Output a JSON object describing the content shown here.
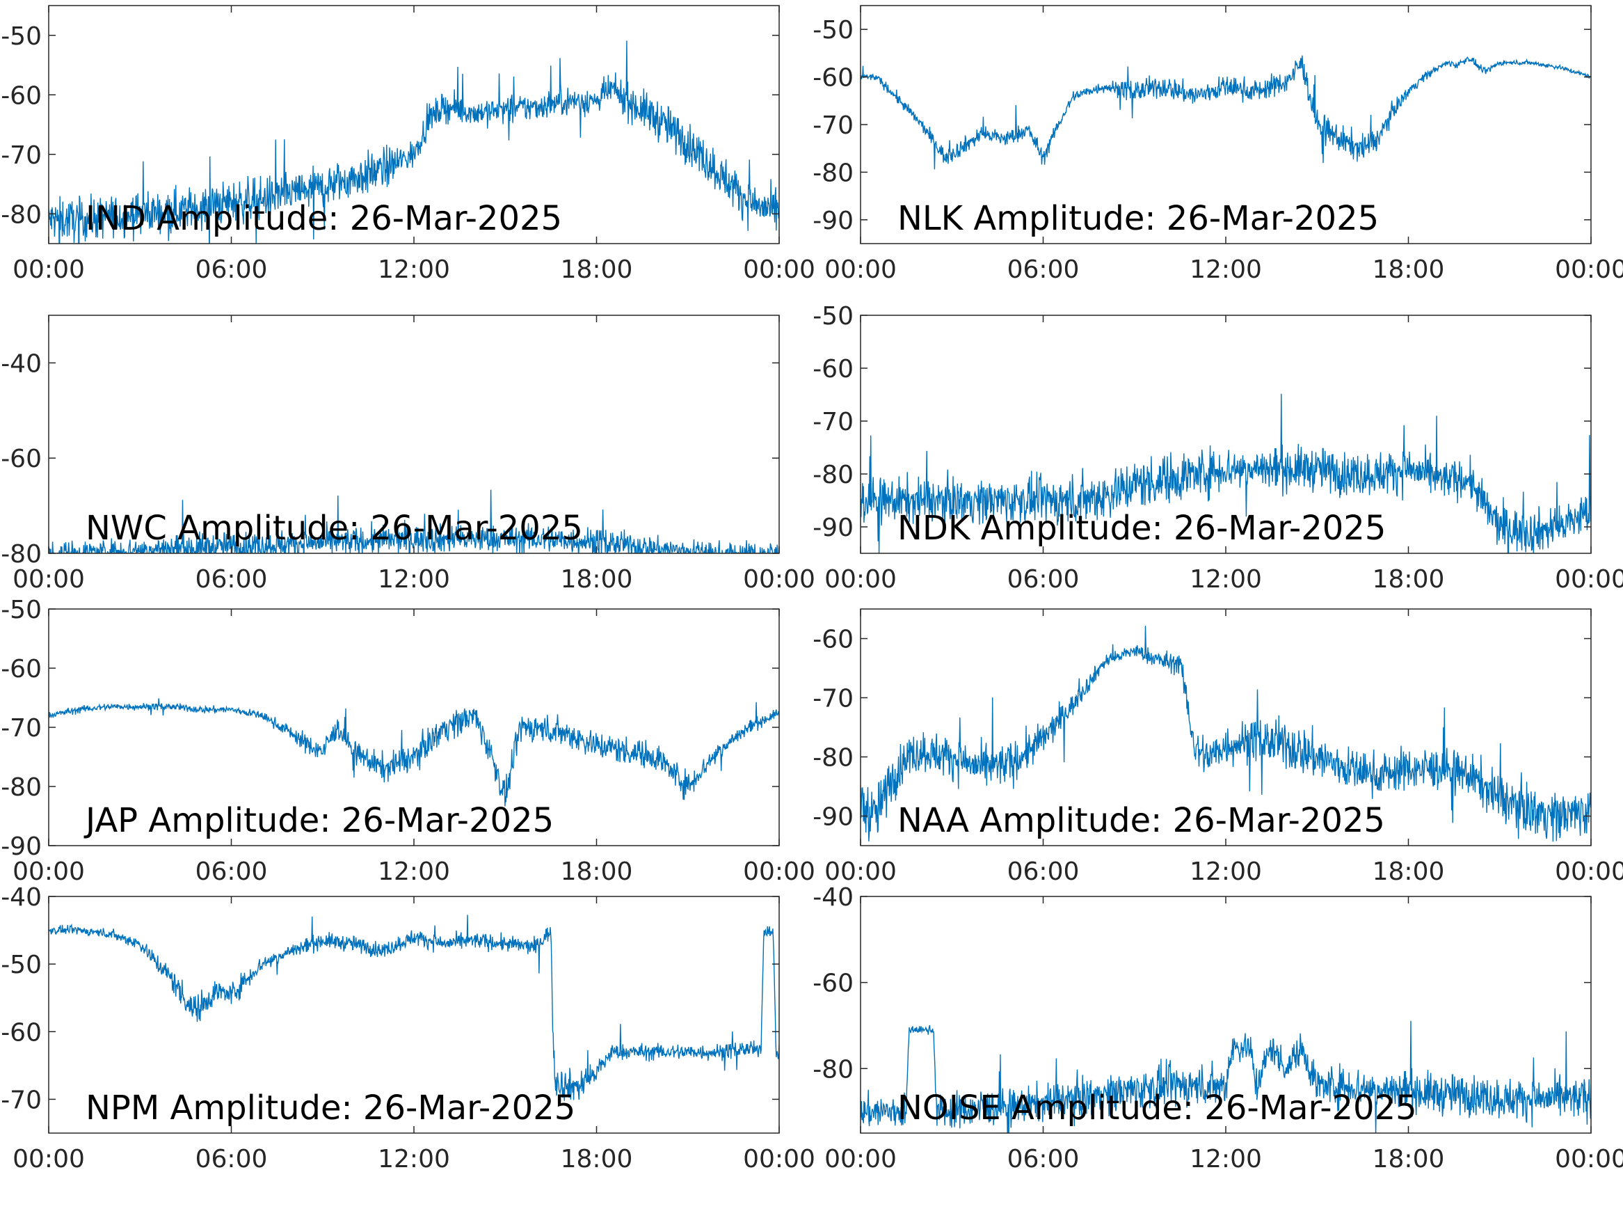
{
  "figure": {
    "line_color": "#0072bd",
    "axis_color": "#262626",
    "background": "#ffffff"
  },
  "chart_data": [
    {
      "type": "line",
      "title": "IND Amplitude: 26-Mar-2025",
      "xlabel": "",
      "ylabel": "",
      "xticks": [
        "00:00",
        "06:00",
        "12:00",
        "18:00",
        "00:00"
      ],
      "yticks": [
        -50,
        -60,
        -70,
        -80
      ],
      "ytick_labels": [
        "-50",
        "-60",
        "-70",
        "-80"
      ],
      "ylim": [
        -85,
        -45
      ],
      "grid": false,
      "series": [
        {
          "hours": [
            0,
            1,
            2,
            3,
            4,
            5,
            6,
            7,
            8,
            9,
            10,
            11,
            12,
            12.5,
            13,
            14,
            15,
            16,
            17,
            18,
            18.5,
            19,
            20,
            21,
            22,
            23,
            24
          ],
          "values": [
            -81,
            -81,
            -80.5,
            -80,
            -79.5,
            -79,
            -78,
            -77.5,
            -76.5,
            -75.5,
            -74,
            -72.5,
            -70,
            -64,
            -62,
            -63,
            -62.5,
            -62,
            -61,
            -61,
            -59,
            -61,
            -64,
            -68,
            -73,
            -78,
            -80
          ],
          "noise": [
            3,
            3,
            3,
            3,
            3,
            3,
            3,
            3,
            3,
            3,
            3,
            3,
            2,
            2,
            2,
            2,
            2,
            2,
            2,
            2,
            2,
            2.5,
            3,
            3,
            3,
            3,
            3
          ]
        }
      ]
    },
    {
      "type": "line",
      "title": "NLK Amplitude: 26-Mar-2025",
      "xlabel": "",
      "ylabel": "",
      "xticks": [
        "00:00",
        "06:00",
        "12:00",
        "18:00",
        "00:00"
      ],
      "yticks": [
        -50,
        -60,
        -70,
        -80,
        -90
      ],
      "ytick_labels": [
        "-50",
        "-60",
        "-70",
        "-80",
        "-90"
      ],
      "ylim": [
        -95,
        -45
      ],
      "grid": false,
      "series": [
        {
          "hours": [
            0,
            0.5,
            1,
            2,
            2.8,
            3.5,
            4,
            4.8,
            5.5,
            6,
            6.5,
            7,
            8,
            9,
            10,
            11,
            12,
            13,
            14,
            14.5,
            15,
            16,
            16.5,
            17,
            17.5,
            18,
            18.5,
            19,
            19.3,
            19.6,
            20,
            20.5,
            21,
            22,
            23,
            24
          ],
          "values": [
            -60,
            -60,
            -63,
            -70,
            -77,
            -74,
            -72,
            -73,
            -71,
            -77,
            -70,
            -64,
            -62,
            -63,
            -62,
            -64,
            -62,
            -63,
            -61,
            -57,
            -70,
            -74,
            -75,
            -73,
            -67,
            -63,
            -60,
            -58,
            -57,
            -57.5,
            -56,
            -59,
            -57,
            -57,
            -58,
            -60
          ],
          "noise": [
            0.6,
            0.6,
            1,
            1,
            1.5,
            1.5,
            1.5,
            1.5,
            1.5,
            1.5,
            1,
            1,
            1,
            2,
            2,
            2,
            2,
            2,
            2,
            2,
            2.5,
            2.5,
            2.5,
            2,
            1.5,
            1,
            0.8,
            0.6,
            0.6,
            0.6,
            0.6,
            0.6,
            0.4,
            0.4,
            0.4,
            0.4
          ]
        }
      ]
    },
    {
      "type": "line",
      "title": "NWC Amplitude: 26-Mar-2025",
      "xlabel": "",
      "ylabel": "",
      "xticks": [
        "00:00",
        "06:00",
        "12:00",
        "18:00",
        "00:00"
      ],
      "yticks": [
        -40,
        -60,
        -80
      ],
      "ytick_labels": [
        "-40",
        "-60",
        "-80"
      ],
      "ylim": [
        -80,
        -30
      ],
      "grid": false,
      "series": [
        {
          "hours": [
            0,
            2,
            4,
            6,
            8,
            10,
            12,
            14,
            16,
            18,
            20,
            22,
            24
          ],
          "values": [
            -80,
            -79.5,
            -79,
            -78.5,
            -78,
            -77.5,
            -77,
            -77,
            -77,
            -77.5,
            -79,
            -80,
            -80
          ],
          "noise": [
            2,
            2,
            2.5,
            2.5,
            2.5,
            2.5,
            2.5,
            2.5,
            2.5,
            2.5,
            2,
            2,
            2
          ]
        }
      ]
    },
    {
      "type": "line",
      "title": "NDK Amplitude: 26-Mar-2025",
      "xlabel": "",
      "ylabel": "",
      "xticks": [
        "00:00",
        "06:00",
        "12:00",
        "18:00",
        "00:00"
      ],
      "yticks": [
        -50,
        -60,
        -70,
        -80,
        -90
      ],
      "ytick_labels": [
        "-50",
        "-60",
        "-70",
        "-80",
        "-90"
      ],
      "ylim": [
        -95,
        -50
      ],
      "grid": false,
      "series": [
        {
          "hours": [
            0,
            2,
            4,
            6,
            7,
            8,
            9,
            10,
            11,
            12,
            13,
            14,
            15,
            16,
            17,
            18,
            19,
            20,
            20.5,
            21,
            22,
            23,
            24
          ],
          "values": [
            -85,
            -85,
            -85,
            -85,
            -85,
            -84,
            -82,
            -81,
            -80,
            -79,
            -79,
            -79,
            -79,
            -80,
            -80,
            -79,
            -81,
            -81,
            -86,
            -90,
            -91,
            -90,
            -87
          ],
          "noise": [
            3.5,
            3.5,
            3.5,
            3.5,
            4,
            4,
            4,
            4,
            4,
            3.5,
            3.5,
            3.5,
            3.5,
            3.5,
            3.5,
            3.5,
            3,
            3,
            3.5,
            3.5,
            3.5,
            3.5,
            3.5
          ]
        }
      ]
    },
    {
      "type": "line",
      "title": "JAP Amplitude: 26-Mar-2025",
      "xlabel": "",
      "ylabel": "",
      "xticks": [
        "00:00",
        "06:00",
        "12:00",
        "18:00",
        "00:00"
      ],
      "yticks": [
        -50,
        -60,
        -70,
        -80,
        -90
      ],
      "ytick_labels": [
        "-50",
        "-60",
        "-70",
        "-80",
        "-90"
      ],
      "ylim": [
        -90,
        -50
      ],
      "grid": false,
      "series": [
        {
          "hours": [
            0,
            1,
            2,
            3,
            4,
            5,
            6,
            7,
            8,
            8.5,
            9,
            9.5,
            10,
            11,
            12,
            13,
            14,
            14.5,
            15,
            15.5,
            16,
            17,
            18,
            19,
            20,
            21,
            21.5,
            22,
            23,
            24
          ],
          "values": [
            -68,
            -67,
            -66.5,
            -66.5,
            -66.5,
            -67,
            -67,
            -68,
            -71,
            -73,
            -74,
            -70,
            -74,
            -77,
            -75,
            -70,
            -68,
            -74,
            -82,
            -70,
            -70,
            -71,
            -73,
            -74,
            -75,
            -80,
            -77,
            -74,
            -70,
            -67.5
          ],
          "noise": [
            0.5,
            0.5,
            0.5,
            0.5,
            0.5,
            0.5,
            0.5,
            0.6,
            1,
            1.5,
            1.5,
            1.5,
            1.5,
            2,
            2,
            2,
            2,
            2,
            2,
            2,
            2,
            2,
            2,
            2,
            2,
            2,
            1.5,
            1.5,
            1,
            0.6
          ]
        }
      ]
    },
    {
      "type": "line",
      "title": "NAA Amplitude: 26-Mar-2025",
      "xlabel": "",
      "ylabel": "",
      "xticks": [
        "00:00",
        "06:00",
        "12:00",
        "18:00",
        "00:00"
      ],
      "yticks": [
        -60,
        -70,
        -80,
        -90
      ],
      "ytick_labels": [
        "-60",
        "-70",
        "-80",
        "-90"
      ],
      "ylim": [
        -95,
        -55
      ],
      "grid": false,
      "series": [
        {
          "hours": [
            0,
            0.5,
            1,
            1.5,
            2,
            3,
            4,
            5,
            6,
            7,
            8,
            9,
            10,
            10.5,
            11,
            11.5,
            12,
            13,
            14,
            15,
            16,
            17,
            18,
            19,
            20,
            21,
            22,
            23,
            24
          ],
          "values": [
            -88,
            -90,
            -84,
            -80,
            -79,
            -80,
            -82,
            -81,
            -77,
            -71,
            -64,
            -62,
            -64,
            -64,
            -79,
            -80,
            -78,
            -77,
            -78,
            -80,
            -82,
            -83,
            -82,
            -82,
            -83,
            -87,
            -89,
            -90,
            -89
          ],
          "noise": [
            4,
            4,
            3.5,
            3,
            3,
            3,
            3,
            3,
            2.5,
            1.5,
            1,
            1,
            1.5,
            1.5,
            3,
            3,
            3,
            3,
            3.5,
            3.5,
            3,
            3,
            3,
            3,
            3,
            3.5,
            3.5,
            3.5,
            3.5
          ]
        }
      ]
    },
    {
      "type": "line",
      "title": "NPM Amplitude: 26-Mar-2025",
      "xlabel": "",
      "ylabel": "",
      "xticks": [
        "00:00",
        "06:00",
        "12:00",
        "18:00",
        "00:00"
      ],
      "yticks": [
        -40,
        -50,
        -60,
        -70
      ],
      "ytick_labels": [
        "-40",
        "-50",
        "-60",
        "-70"
      ],
      "ylim": [
        -75,
        -40
      ],
      "grid": false,
      "series": [
        {
          "hours": [
            0,
            1,
            2,
            3,
            4,
            4.8,
            5.5,
            6,
            7,
            8,
            9,
            10,
            11,
            12,
            13,
            14,
            15,
            16,
            16.3,
            16.5,
            16.6,
            17,
            17.5,
            18,
            18.5,
            19,
            20,
            21,
            22,
            23,
            23.4,
            23.5,
            23.8,
            23.9,
            24
          ],
          "values": [
            -45,
            -45,
            -45.5,
            -47,
            -52,
            -57,
            -54,
            -54.5,
            -50,
            -48,
            -46.5,
            -47,
            -48,
            -46,
            -47,
            -46.5,
            -47,
            -47.5,
            -46,
            -45,
            -67,
            -68,
            -68,
            -66,
            -63,
            -63,
            -63,
            -63,
            -63,
            -62.5,
            -63,
            -45,
            -45,
            -63,
            -63
          ],
          "noise": [
            0.5,
            0.5,
            0.6,
            0.8,
            1.5,
            2,
            1.5,
            1.5,
            1,
            1,
            1,
            1,
            1,
            1,
            1,
            1,
            1,
            1,
            1,
            1,
            2,
            2,
            2,
            1.5,
            1,
            1,
            1,
            1,
            1,
            1,
            1,
            0.8,
            0.8,
            1,
            1
          ]
        }
      ]
    },
    {
      "type": "line",
      "title": "NOISE Amplitude: 26-Mar-2025",
      "xlabel": "",
      "ylabel": "",
      "xticks": [
        "00:00",
        "06:00",
        "12:00",
        "18:00",
        "00:00"
      ],
      "yticks": [
        -40,
        -60,
        -80
      ],
      "ytick_labels": [
        "-40",
        "-60",
        "-80"
      ],
      "ylim": [
        -95,
        -40
      ],
      "grid": false,
      "series": [
        {
          "hours": [
            0,
            1,
            1.5,
            1.6,
            2.4,
            2.5,
            3,
            4,
            5,
            6,
            7,
            8,
            9,
            10,
            11,
            12,
            12.2,
            12.8,
            13,
            13.5,
            14,
            14.5,
            15,
            16,
            17,
            18,
            19,
            20,
            21,
            22,
            23,
            24
          ],
          "values": [
            -90,
            -90,
            -90,
            -71,
            -71,
            -90,
            -90,
            -89,
            -89,
            -88,
            -87,
            -86,
            -85,
            -84,
            -84,
            -84,
            -75,
            -75,
            -84,
            -75,
            -80,
            -75,
            -84,
            -84,
            -85,
            -85,
            -86,
            -86,
            -87,
            -87,
            -87,
            -87
          ],
          "noise": [
            3.5,
            3.5,
            3.5,
            0.8,
            0.8,
            3.5,
            3.5,
            3.5,
            3.5,
            3.5,
            4,
            4,
            4,
            4,
            4,
            4,
            3,
            3,
            4,
            3,
            3,
            3,
            4,
            4,
            4,
            4,
            4,
            4,
            4,
            4,
            4,
            4
          ]
        }
      ]
    }
  ]
}
